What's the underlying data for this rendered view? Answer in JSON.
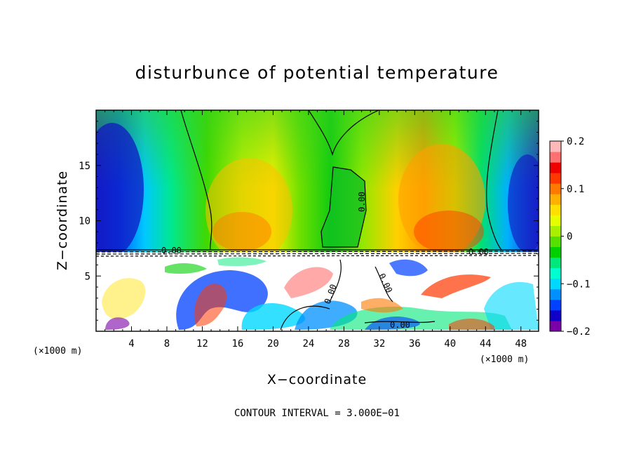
{
  "chart_data": {
    "type": "heatmap",
    "title": "disturbunce of potential temperature",
    "xlabel": "X−coordinate",
    "ylabel": "Z−coordinate",
    "x_unit": "(×1000 m)",
    "y_unit": "(×1000 m)",
    "xlim": [
      0,
      50
    ],
    "ylim": [
      0,
      20
    ],
    "x_ticks": [
      4,
      8,
      12,
      16,
      20,
      24,
      28,
      32,
      36,
      40,
      44,
      48
    ],
    "y_ticks": [
      5,
      10,
      15
    ],
    "colorbar": {
      "min": -0.2,
      "max": 0.2,
      "tick_values": [
        -0.2,
        -0.1,
        0,
        0.1,
        0.2
      ],
      "tick_labels": [
        "−0.2",
        "−0.1",
        "0",
        "0.1",
        "0.2"
      ],
      "colors": [
        "#7a00a8",
        "#1000c8",
        "#0040ff",
        "#0090ff",
        "#00d8ff",
        "#00ffd0",
        "#00e87a",
        "#00d000",
        "#55e000",
        "#a8f000",
        "#e6ff00",
        "#ffe000",
        "#ffb000",
        "#ff7800",
        "#ff3800",
        "#ee0000",
        "#ff7070",
        "#ffb8b8"
      ]
    },
    "contour_labels": [
      "0.00",
      "0.00",
      "0.00",
      "0.00",
      "0.00",
      "0.00"
    ],
    "annotation": "CONTOUR INTERVAL = 3.000E−01"
  }
}
